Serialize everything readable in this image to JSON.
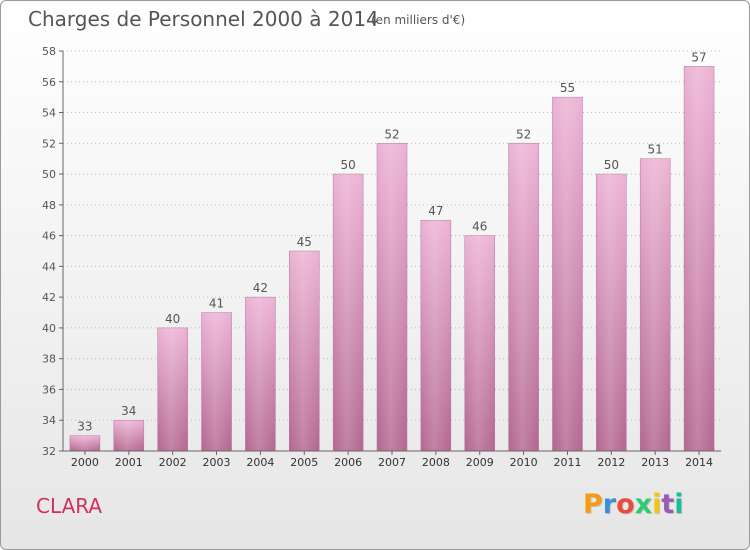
{
  "header": {
    "title": "Charges de Personnel 2000 à 2014",
    "subtitle": "(en milliers d'€)"
  },
  "footer": {
    "commune": "CLARA",
    "logo_text": "Proxiti",
    "logo_colors": [
      "#f39c12",
      "#3a8fd8",
      "#e74c3c",
      "#2ecc71",
      "#f1c40f",
      "#9b59b6",
      "#1abc9c"
    ]
  },
  "colors": {
    "bar_light": "#ecb2d4",
    "bar_dark": "#b3668f",
    "grid": "#bbbbbb",
    "text": "#555555"
  },
  "chart_data": {
    "type": "bar",
    "categories": [
      "2000",
      "2001",
      "2002",
      "2003",
      "2004",
      "2005",
      "2006",
      "2007",
      "2008",
      "2009",
      "2010",
      "2011",
      "2012",
      "2013",
      "2014"
    ],
    "values": [
      33,
      34,
      40,
      41,
      42,
      45,
      50,
      52,
      47,
      46,
      52,
      55,
      50,
      51,
      57
    ],
    "title": "Charges de Personnel 2000 à 2014",
    "subtitle": "(en milliers d'€)",
    "ylim": [
      32,
      58
    ],
    "yticks": [
      32,
      34,
      36,
      38,
      40,
      42,
      44,
      46,
      48,
      50,
      52,
      54,
      56,
      58
    ],
    "grid": true
  }
}
